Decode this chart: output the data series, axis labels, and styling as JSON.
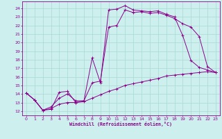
{
  "xlabel": "Windchill (Refroidissement éolien,°C)",
  "bg_color": "#cdf0ee",
  "line_color": "#8b008b",
  "grid_color": "#a8d8d4",
  "xlim": [
    -0.5,
    23.5
  ],
  "ylim": [
    11.5,
    24.8
  ],
  "xticks": [
    0,
    1,
    2,
    3,
    4,
    5,
    6,
    7,
    8,
    9,
    10,
    11,
    12,
    13,
    14,
    15,
    16,
    17,
    18,
    19,
    20,
    21,
    22,
    23
  ],
  "yticks": [
    12,
    13,
    14,
    15,
    16,
    17,
    18,
    19,
    20,
    21,
    22,
    23,
    24
  ],
  "line1_x": [
    0,
    1,
    2,
    3,
    4,
    5,
    6,
    7,
    8,
    9,
    10,
    11,
    12,
    13,
    14,
    15,
    16,
    17,
    18,
    19,
    20,
    21,
    22,
    23
  ],
  "line1_y": [
    14.1,
    13.3,
    12.1,
    12.2,
    14.2,
    14.3,
    13.0,
    13.2,
    18.2,
    15.3,
    23.8,
    23.9,
    24.3,
    23.8,
    23.7,
    23.6,
    23.7,
    23.3,
    23.0,
    20.8,
    17.9,
    17.1,
    16.8,
    16.5
  ],
  "line2_x": [
    0,
    1,
    2,
    3,
    4,
    5,
    6,
    7,
    8,
    9,
    10,
    11,
    12,
    13,
    14,
    15,
    16,
    17,
    18,
    19,
    20,
    21,
    22,
    23
  ],
  "line2_y": [
    14.1,
    13.3,
    12.1,
    12.5,
    13.5,
    14.0,
    13.2,
    13.2,
    15.3,
    15.5,
    21.8,
    22.0,
    23.8,
    23.5,
    23.6,
    23.4,
    23.5,
    23.2,
    22.8,
    22.2,
    21.8,
    20.7,
    17.2,
    16.5
  ],
  "line3_x": [
    0,
    1,
    2,
    3,
    4,
    5,
    6,
    7,
    8,
    9,
    10,
    11,
    12,
    13,
    14,
    15,
    16,
    17,
    18,
    19,
    20,
    21,
    22,
    23
  ],
  "line3_y": [
    14.1,
    13.3,
    12.1,
    12.3,
    12.8,
    13.0,
    13.0,
    13.1,
    13.5,
    13.9,
    14.3,
    14.6,
    15.0,
    15.2,
    15.4,
    15.6,
    15.8,
    16.1,
    16.2,
    16.3,
    16.4,
    16.5,
    16.6,
    16.5
  ]
}
